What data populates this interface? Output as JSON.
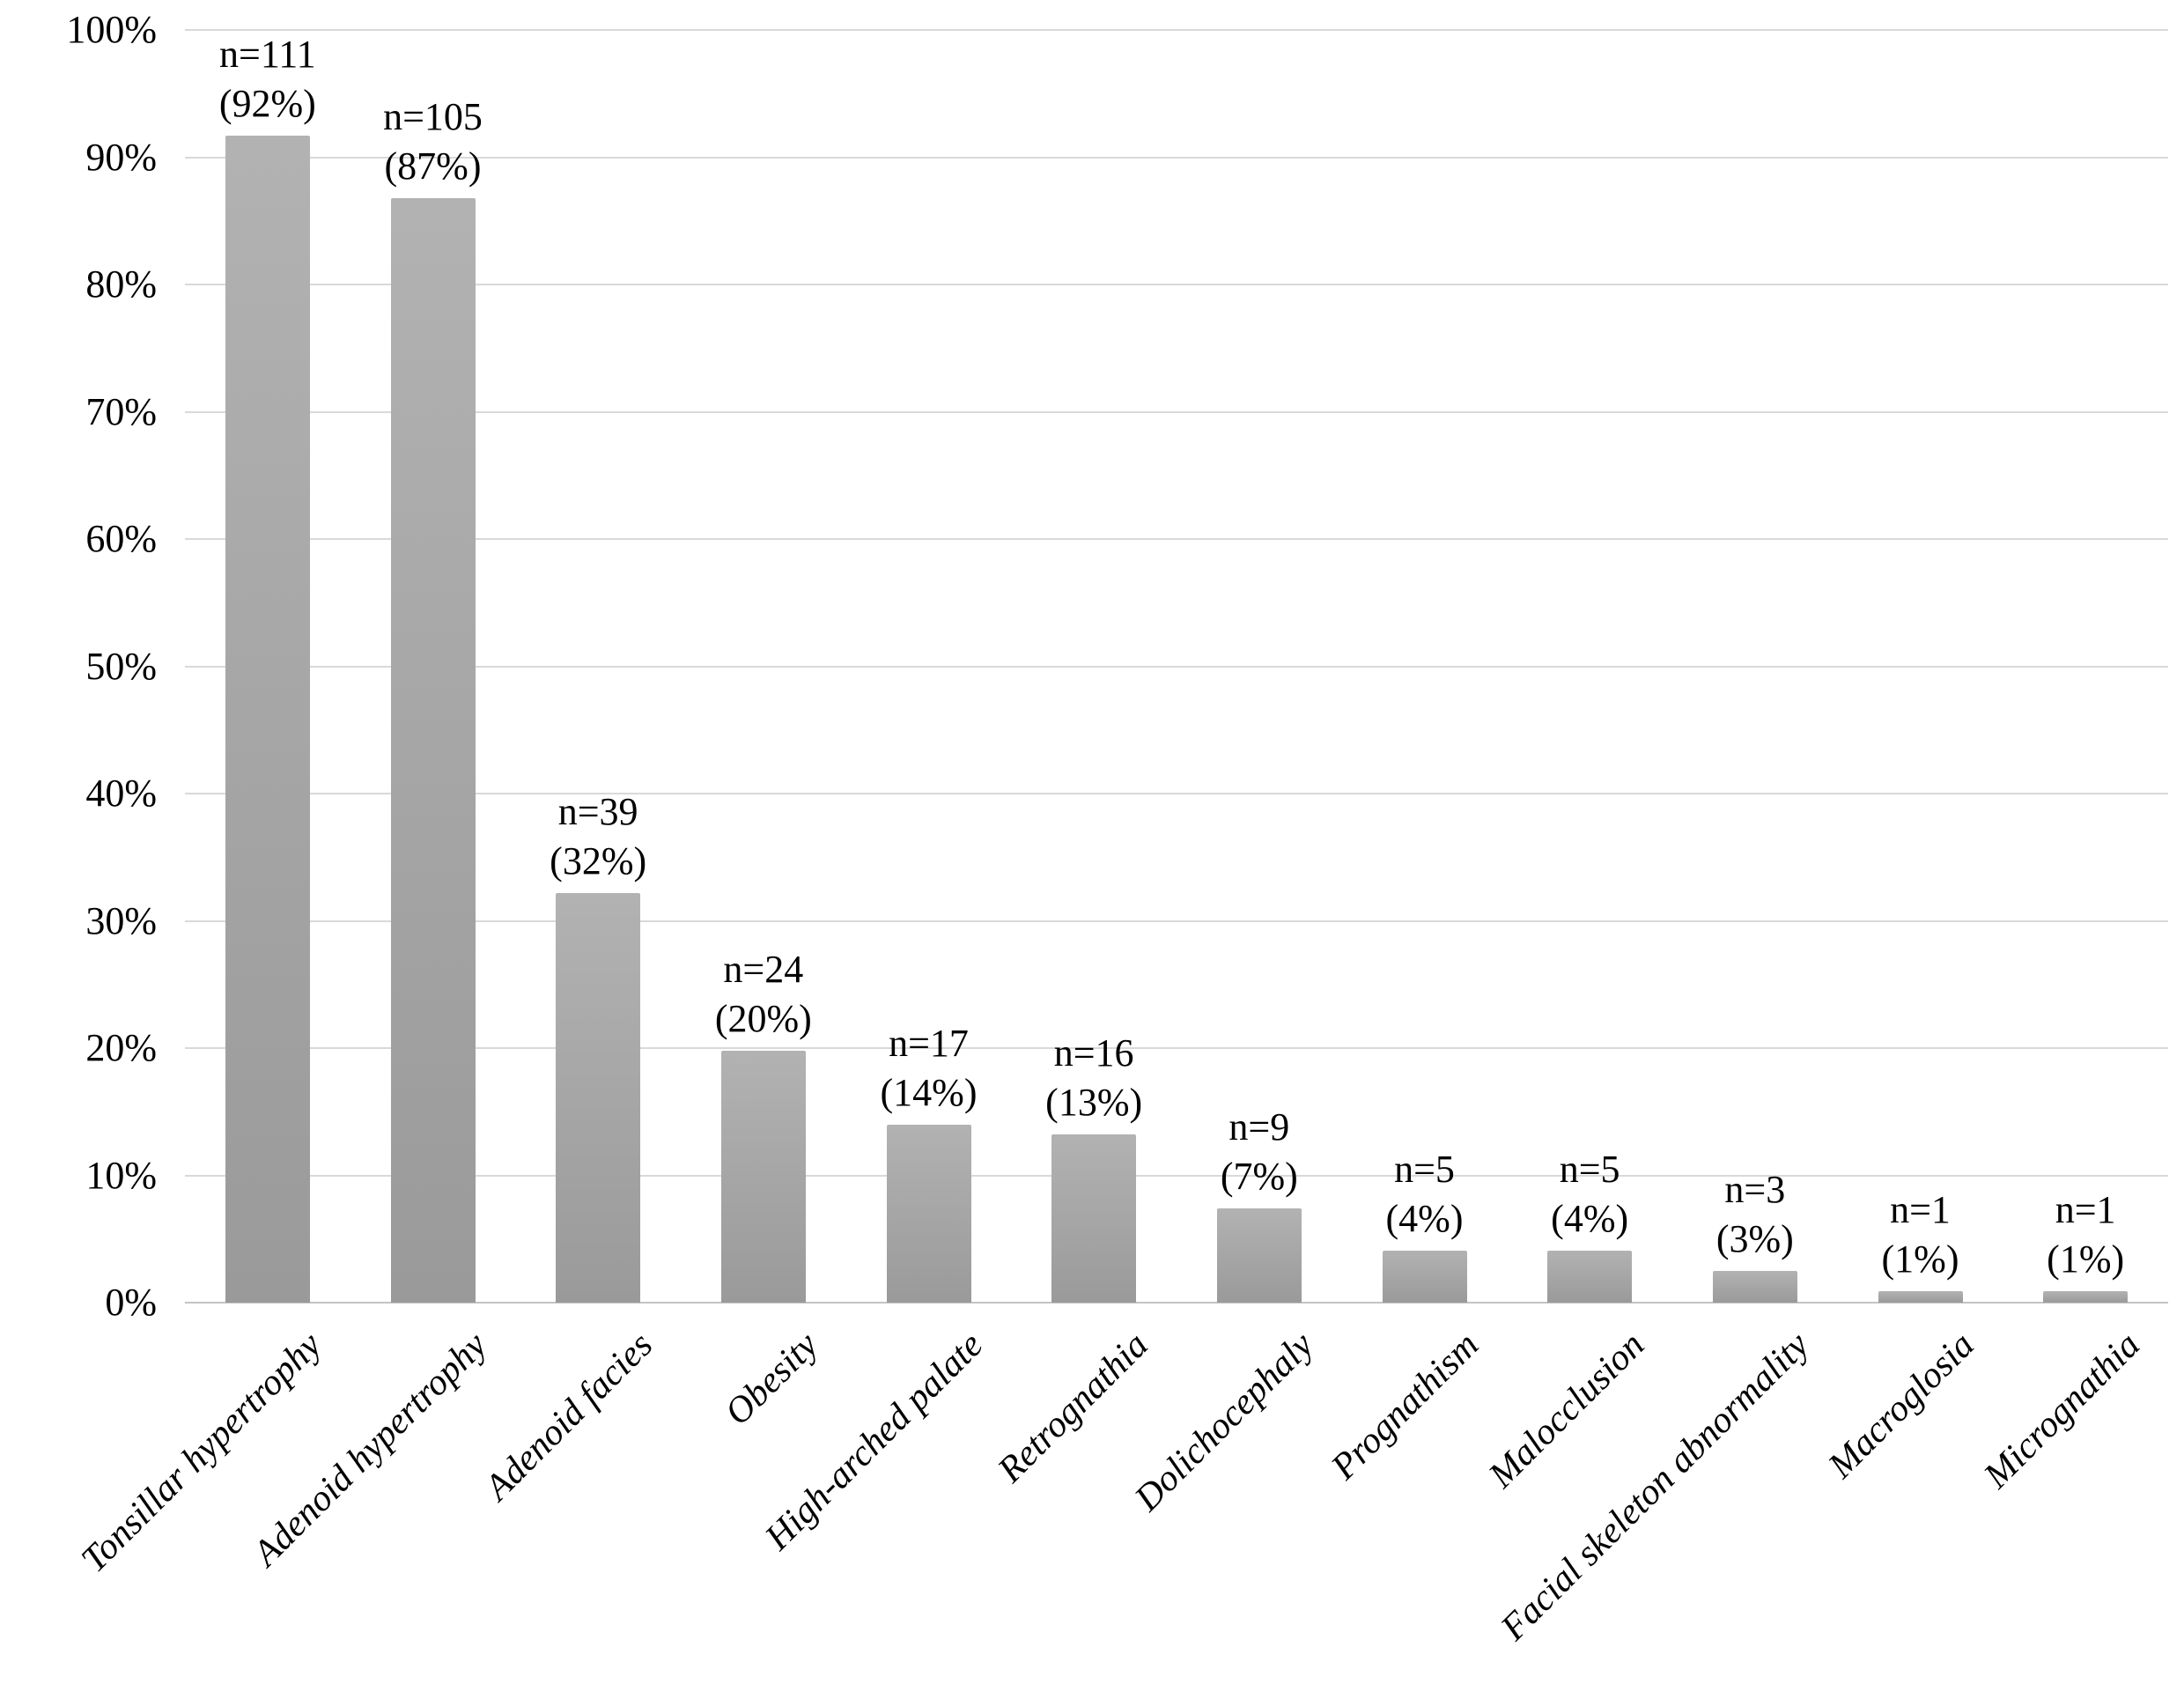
{
  "chart_data": {
    "type": "bar",
    "title": "",
    "xlabel": "",
    "ylabel": "",
    "categories": [
      "Tonsillar hypertrophy",
      "Adenoid hypertrophy",
      "Adenoid facies",
      "Obesity",
      "High-arched palate",
      "Retrognathia",
      "Dolichocephaly",
      "Prognathism",
      "Malocclusion",
      "Facial skeleton abnormality",
      "Macroglosia",
      "Micrognathia"
    ],
    "counts": [
      111,
      105,
      39,
      24,
      17,
      16,
      9,
      5,
      5,
      3,
      1,
      1
    ],
    "values": [
      91.7,
      86.8,
      32.2,
      19.8,
      14.0,
      13.2,
      7.4,
      4.1,
      4.1,
      2.5,
      0.9,
      0.9
    ],
    "count_labels": [
      "n=111",
      "n=105",
      "n=39",
      "n=24",
      "n=17",
      "n=16",
      "n=9",
      "n=5",
      "n=5",
      "n=3",
      "n=1",
      "n=1"
    ],
    "percent_labels": [
      "(92%)",
      "(87%)",
      "(32%)",
      "(20%)",
      "(14%)",
      "(13%)",
      "(7%)",
      "(4%)",
      "(4%)",
      "(3%)",
      "(1%)",
      "(1%)"
    ],
    "y_axis": {
      "tick_labels": [
        "0%",
        "10%",
        "20%",
        "30%",
        "40%",
        "50%",
        "60%",
        "70%",
        "80%",
        "90%",
        "100%"
      ],
      "min": 0,
      "max": 100,
      "step": 10
    },
    "x_axis": {
      "tick_label_rotation_deg": 45,
      "tick_label_style": "italic"
    },
    "legend": {
      "visible": false
    },
    "grid": true,
    "colors": {
      "bar_top": "#b2b2b2",
      "bar_bottom": "#9a9a9a",
      "gridline": "#d9d9d9",
      "axis_line": "#c4c4c4",
      "text": "#000000",
      "background": "#ffffff"
    }
  }
}
